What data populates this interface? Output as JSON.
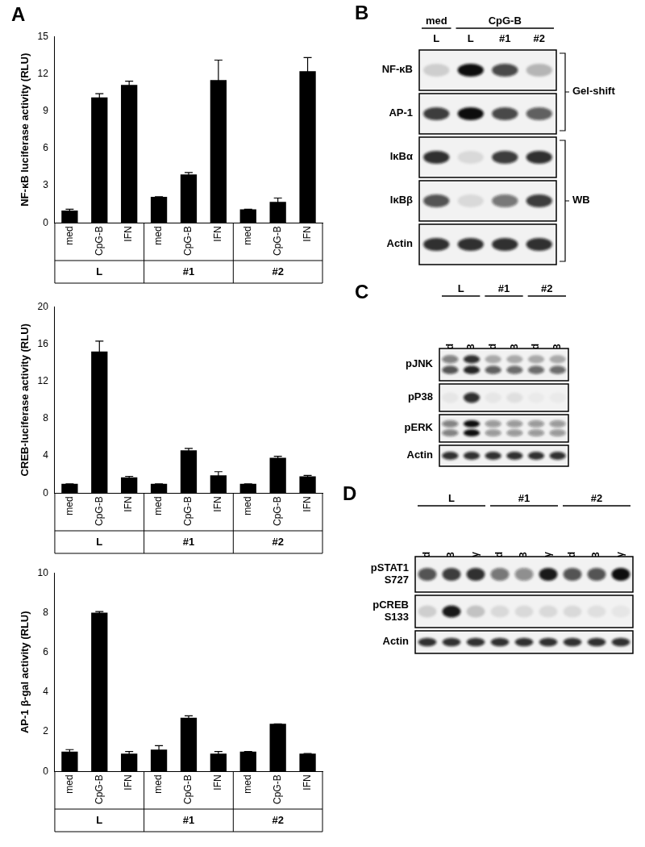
{
  "chart_data": [
    {
      "type": "bar",
      "y_label": "NF-κB luciferase activity (RLU)",
      "categories": [
        "med",
        "CpG-B",
        "IFN",
        "med",
        "CpG-B",
        "IFN",
        "med",
        "CpG-B",
        "IFN"
      ],
      "groups": [
        "L",
        "#1",
        "#2"
      ],
      "values": [
        1.0,
        10.1,
        11.1,
        2.1,
        3.9,
        11.5,
        1.1,
        1.7,
        12.2
      ],
      "errors": [
        0.1,
        0.3,
        0.3,
        0.0,
        0.15,
        1.6,
        0.0,
        0.3,
        1.1
      ],
      "color": "#000000",
      "ylim": [
        0,
        15
      ],
      "yticks": [
        0,
        3,
        6,
        9,
        12,
        15
      ],
      "grid": false
    },
    {
      "type": "bar",
      "y_label": "CREB-luciferase activity (RLU)",
      "categories": [
        "med",
        "CpG-B",
        "IFN",
        "med",
        "CpG-B",
        "IFN",
        "med",
        "CpG-B",
        "IFN"
      ],
      "groups": [
        "L",
        "#1",
        "#2"
      ],
      "values": [
        1.0,
        15.2,
        1.7,
        1.0,
        4.6,
        1.9,
        1.0,
        3.8,
        1.8
      ],
      "errors": [
        0.0,
        1.1,
        0.1,
        0.0,
        0.2,
        0.4,
        0.0,
        0.15,
        0.1
      ],
      "color": "#000000",
      "ylim": [
        0,
        20
      ],
      "yticks": [
        0,
        4,
        8,
        12,
        16,
        20
      ],
      "grid": false
    },
    {
      "type": "bar",
      "y_label": "AP-1 β-gal activity (RLU)",
      "categories": [
        "med",
        "CpG-B",
        "IFN",
        "med",
        "CpG-B",
        "IFN",
        "med",
        "CpG-B",
        "IFN"
      ],
      "groups": [
        "L",
        "#1",
        "#2"
      ],
      "values": [
        1.0,
        8.0,
        0.9,
        1.1,
        2.7,
        0.9,
        1.0,
        2.4,
        0.9
      ],
      "errors": [
        0.1,
        0.05,
        0.1,
        0.2,
        0.1,
        0.1,
        0.0,
        0.0,
        0.0
      ],
      "color": "#000000",
      "ylim": [
        0,
        10
      ],
      "yticks": [
        0,
        2,
        4,
        6,
        8,
        10
      ],
      "grid": false
    }
  ],
  "panel_labels": [
    "A",
    "B",
    "C",
    "D"
  ],
  "blots": [
    {
      "groups": [
        {
          "label": "med",
          "lanes": 1
        },
        {
          "label": "CpG-B",
          "lanes": 3
        }
      ],
      "lane_labels": [
        "L",
        "L",
        "#1",
        "#2"
      ],
      "rows": [
        {
          "label": [
            "NF-κB"
          ],
          "bands": [
            [
              0.15,
              1.0,
              0.75,
              0.25
            ]
          ]
        },
        {
          "label": [
            "AP-1"
          ],
          "bands": [
            [
              0.8,
              1.0,
              0.75,
              0.65
            ]
          ]
        },
        {
          "label": [
            "IκBα"
          ],
          "bands": [
            [
              0.85,
              0.1,
              0.8,
              0.85
            ]
          ]
        },
        {
          "label": [
            "IκBβ"
          ],
          "bands": [
            [
              0.7,
              0.1,
              0.55,
              0.8
            ]
          ]
        },
        {
          "label": [
            "Actin"
          ],
          "bands": [
            [
              0.85,
              0.85,
              0.85,
              0.85
            ]
          ]
        }
      ],
      "brackets": [
        {
          "label": "Gel-shift",
          "from": 0,
          "to": 1
        },
        {
          "label": "WB",
          "from": 2,
          "to": 4
        }
      ]
    },
    {
      "groups": [
        {
          "label": "L",
          "lanes": 2
        },
        {
          "label": "#1",
          "lanes": 2
        },
        {
          "label": "#2",
          "lanes": 2
        }
      ],
      "lane_labels": [
        "med",
        "CpG-B",
        "med",
        "CpG-B",
        "med",
        "CpG-B"
      ],
      "rows": [
        {
          "label": [
            "pJNK"
          ],
          "bands": [
            [
              0.5,
              0.85,
              0.3,
              0.3,
              0.3,
              0.3
            ],
            [
              0.7,
              0.9,
              0.65,
              0.6,
              0.6,
              0.6
            ]
          ]
        },
        {
          "label": [
            "pP38"
          ],
          "bands": [
            [
              0.05,
              0.85,
              0.05,
              0.08,
              0.03,
              0.03
            ]
          ]
        },
        {
          "label": [
            "pERK"
          ],
          "bands": [
            [
              0.5,
              1.0,
              0.4,
              0.4,
              0.4,
              0.4
            ],
            [
              0.5,
              1.0,
              0.4,
              0.4,
              0.4,
              0.4
            ]
          ]
        },
        {
          "label": [
            "Actin"
          ],
          "bands": [
            [
              0.85,
              0.85,
              0.85,
              0.85,
              0.85,
              0.85
            ]
          ]
        }
      ],
      "brackets": []
    },
    {
      "groups": [
        {
          "label": "L",
          "lanes": 3
        },
        {
          "label": "#1",
          "lanes": 3
        },
        {
          "label": "#2",
          "lanes": 3
        }
      ],
      "lane_labels": [
        "med",
        "CpG-B",
        "IFN-γ",
        "med",
        "CpG-B",
        "IFN-γ",
        "med",
        "CpG-B",
        "IFN-γ"
      ],
      "rows": [
        {
          "label": [
            "pSTAT1",
            "S727"
          ],
          "bands": [
            [
              0.7,
              0.8,
              0.85,
              0.55,
              0.45,
              0.95,
              0.7,
              0.7,
              1.0
            ]
          ]
        },
        {
          "label": [
            "pCREB",
            "S133"
          ],
          "bands": [
            [
              0.15,
              0.95,
              0.2,
              0.1,
              0.1,
              0.1,
              0.1,
              0.08,
              0.05
            ]
          ]
        },
        {
          "label": [
            "Actin"
          ],
          "bands": [
            [
              0.85,
              0.85,
              0.85,
              0.85,
              0.85,
              0.85,
              0.85,
              0.85,
              0.85
            ]
          ]
        }
      ],
      "brackets": []
    }
  ]
}
